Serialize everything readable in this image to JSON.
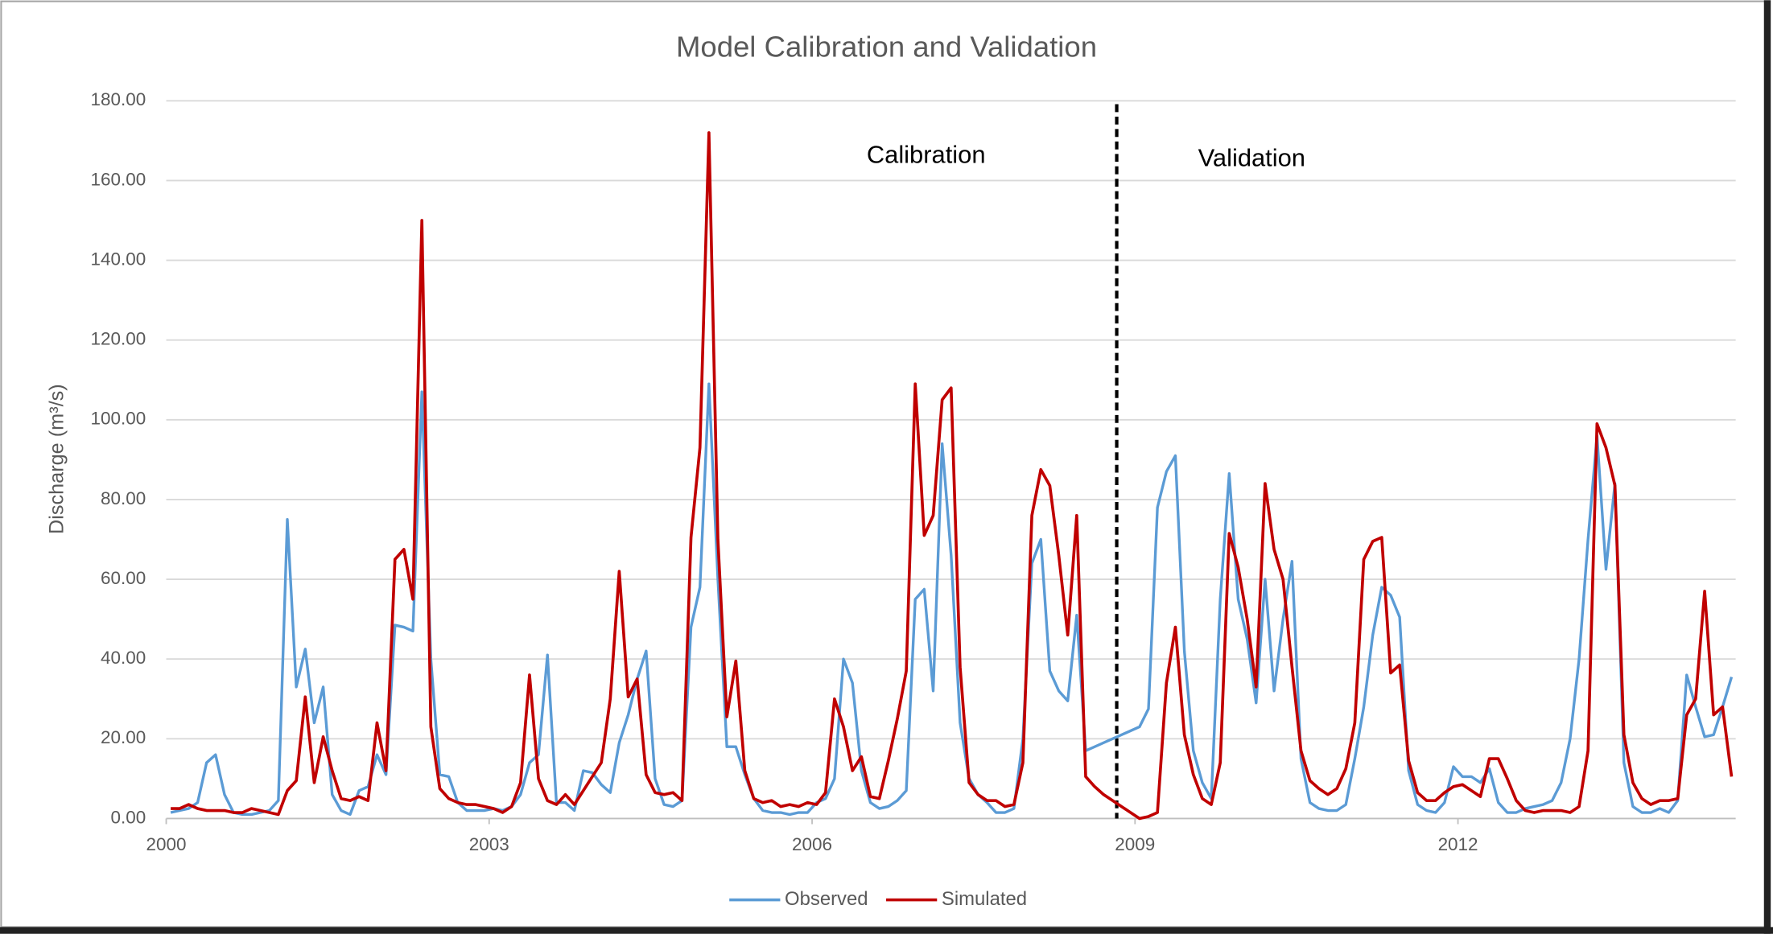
{
  "chart_data": {
    "type": "line",
    "title": "Model Calibration and Validation",
    "y_label": "Discharge (m³/s)",
    "annotations": [
      "Calibration",
      "Validation"
    ],
    "divider_x": 2008.83,
    "x": [
      2000.0417,
      2000.125,
      2000.2083,
      2000.2917,
      2000.375,
      2000.4583,
      2000.5417,
      2000.625,
      2000.7083,
      2000.7917,
      2000.875,
      2000.9583,
      2001.0417,
      2001.125,
      2001.2083,
      2001.2917,
      2001.375,
      2001.4583,
      2001.5417,
      2001.625,
      2001.7083,
      2001.7917,
      2001.875,
      2001.9583,
      2002.0417,
      2002.125,
      2002.2083,
      2002.2917,
      2002.375,
      2002.4583,
      2002.5417,
      2002.625,
      2002.7083,
      2002.7917,
      2002.875,
      2002.9583,
      2003.0417,
      2003.125,
      2003.2083,
      2003.2917,
      2003.375,
      2003.4583,
      2003.5417,
      2003.625,
      2003.7083,
      2003.7917,
      2003.875,
      2003.9583,
      2004.0417,
      2004.125,
      2004.2083,
      2004.2917,
      2004.375,
      2004.4583,
      2004.5417,
      2004.625,
      2004.7083,
      2004.7917,
      2004.875,
      2004.9583,
      2005.0417,
      2005.125,
      2005.2083,
      2005.2917,
      2005.375,
      2005.4583,
      2005.5417,
      2005.625,
      2005.7083,
      2005.7917,
      2005.875,
      2005.9583,
      2006.0417,
      2006.125,
      2006.2083,
      2006.2917,
      2006.375,
      2006.4583,
      2006.5417,
      2006.625,
      2006.7083,
      2006.7917,
      2006.875,
      2006.9583,
      2007.0417,
      2007.125,
      2007.2083,
      2007.2917,
      2007.375,
      2007.4583,
      2007.5417,
      2007.625,
      2007.7083,
      2007.7917,
      2007.875,
      2007.9583,
      2008.0417,
      2008.125,
      2008.2083,
      2008.2917,
      2008.375,
      2008.4583,
      2008.5417,
      2008.625,
      2008.7083,
      2008.7917,
      2008.875,
      2008.9583,
      2009.0417,
      2009.125,
      2009.2083,
      2009.2917,
      2009.375,
      2009.4583,
      2009.5417,
      2009.625,
      2009.7083,
      2009.7917,
      2009.875,
      2009.9583,
      2010.0417,
      2010.125,
      2010.2083,
      2010.2917,
      2010.375,
      2010.4583,
      2010.5417,
      2010.625,
      2010.7083,
      2010.7917,
      2010.875,
      2010.9583,
      2011.0417,
      2011.125,
      2011.2083,
      2011.2917,
      2011.375,
      2011.4583,
      2011.5417,
      2011.625,
      2011.7083,
      2011.7917,
      2011.875,
      2011.9583,
      2012.0417,
      2012.125,
      2012.2083,
      2012.2917,
      2012.375,
      2012.4583,
      2012.5417,
      2012.625,
      2012.7083,
      2012.7917,
      2012.875,
      2012.9583,
      2013.0417,
      2013.125,
      2013.2083,
      2013.2917,
      2013.375,
      2013.4583,
      2013.5417,
      2013.625,
      2013.7083,
      2013.7917,
      2013.875,
      2013.9583,
      2014.0417,
      2014.125,
      2014.2083,
      2014.2917,
      2014.375,
      2014.4583,
      2014.5417
    ],
    "series": [
      {
        "name": "Observed",
        "color": "#5b9bd5",
        "values": [
          1.5,
          2,
          2.5,
          4,
          14,
          16,
          6,
          1.5,
          1,
          1,
          1.5,
          2,
          4.5,
          75,
          33,
          42.5,
          24,
          33,
          6,
          2,
          1,
          7,
          8,
          16,
          11,
          48.5,
          48,
          47,
          107,
          40,
          11,
          10.5,
          4,
          2,
          2,
          2,
          2.5,
          2,
          3,
          6,
          14,
          16,
          41,
          4,
          4,
          2,
          12,
          11.5,
          8.5,
          6.5,
          19,
          26,
          35,
          42,
          10,
          3.5,
          3,
          4.5,
          48,
          58,
          109,
          60,
          18,
          18,
          11,
          5,
          2,
          1.5,
          1.5,
          1,
          1.5,
          1.5,
          4,
          5,
          10,
          40,
          34,
          12,
          4,
          2.5,
          3,
          4.5,
          7,
          55,
          57.5,
          32,
          94,
          66,
          24,
          10,
          6,
          4,
          1.5,
          1.5,
          2.5,
          20,
          64,
          70,
          37,
          32,
          29.5,
          51,
          17,
          18,
          19,
          20,
          21,
          22,
          23,
          27.5,
          78,
          87,
          91,
          42,
          17,
          9,
          5,
          55,
          86.5,
          55,
          45,
          29,
          60,
          32,
          50,
          64.5,
          15,
          4,
          2.5,
          2,
          2,
          3.5,
          15,
          28,
          46,
          58,
          56,
          50.5,
          12,
          3.5,
          2,
          1.5,
          4,
          13,
          10.5,
          10.5,
          9,
          12.5,
          4,
          1.5,
          1.5,
          2.5,
          3,
          3.5,
          4.5,
          9,
          20,
          40,
          70,
          96,
          62.5,
          84,
          14,
          3,
          1.5,
          1.5,
          2.5,
          1.5,
          4.5,
          36,
          28,
          20.5,
          21,
          28,
          35.5
        ]
      },
      {
        "name": "Simulated",
        "color": "#c00000",
        "values": [
          2.5,
          2.5,
          3.5,
          2.5,
          2,
          2,
          2,
          1.5,
          1.5,
          2.5,
          2,
          1.5,
          1,
          7,
          9.5,
          30.5,
          9,
          20.5,
          12,
          5,
          4.5,
          5.5,
          4.5,
          24,
          12,
          65,
          67.5,
          55,
          150,
          23,
          7.5,
          5,
          4,
          3.5,
          3.5,
          3,
          2.5,
          1.5,
          3,
          9,
          36,
          10,
          4.5,
          3.5,
          6,
          3.5,
          7,
          10.5,
          14,
          30,
          62,
          30.5,
          35,
          11,
          6.5,
          6,
          6.5,
          4.5,
          70.5,
          93,
          172,
          70,
          25.5,
          39.5,
          12,
          5,
          4,
          4.5,
          3,
          3.5,
          3,
          4,
          3.5,
          6.5,
          30,
          23,
          12,
          15.5,
          5.5,
          5,
          14.5,
          25,
          37,
          109,
          71,
          76,
          105,
          108,
          38,
          9,
          6,
          4.5,
          4.5,
          3,
          3.5,
          14,
          76,
          87.5,
          83.5,
          66,
          46,
          76,
          10.5,
          8,
          6,
          4.5,
          3,
          1.5,
          0,
          0.5,
          1.5,
          34,
          48,
          21,
          11,
          5,
          3.5,
          14,
          71.5,
          63,
          50,
          33,
          84,
          67.5,
          60,
          38,
          17,
          9.5,
          7.5,
          6,
          7.5,
          12.5,
          24,
          65,
          69.5,
          70.5,
          36.5,
          38.5,
          14.5,
          6.5,
          4.5,
          4.5,
          6.5,
          8,
          8.5,
          7,
          5.5,
          15,
          15,
          10,
          4.5,
          2,
          1.5,
          2,
          2,
          2,
          1.5,
          3,
          17,
          99,
          93,
          83.5,
          21,
          9,
          5,
          3.5,
          4.5,
          4.5,
          5,
          26,
          30,
          57,
          26,
          28,
          10.5
        ]
      }
    ],
    "xlim": [
      2000,
      2014.58
    ],
    "xticks": [
      2000,
      2003,
      2006,
      2009,
      2012
    ],
    "ylim": [
      0,
      180
    ],
    "yticks": [
      {
        "value": 0,
        "label": "0.00"
      },
      {
        "value": 20,
        "label": "20.00"
      },
      {
        "value": 40,
        "label": "40.00"
      },
      {
        "value": 60,
        "label": "60.00"
      },
      {
        "value": 80,
        "label": "80.00"
      },
      {
        "value": 100,
        "label": "100.00"
      },
      {
        "value": 120,
        "label": "120.00"
      },
      {
        "value": 140,
        "label": "140.00"
      },
      {
        "value": 160,
        "label": "160.00"
      },
      {
        "value": 180,
        "label": "180.00"
      }
    ],
    "grid": true,
    "legend": "bottom"
  }
}
